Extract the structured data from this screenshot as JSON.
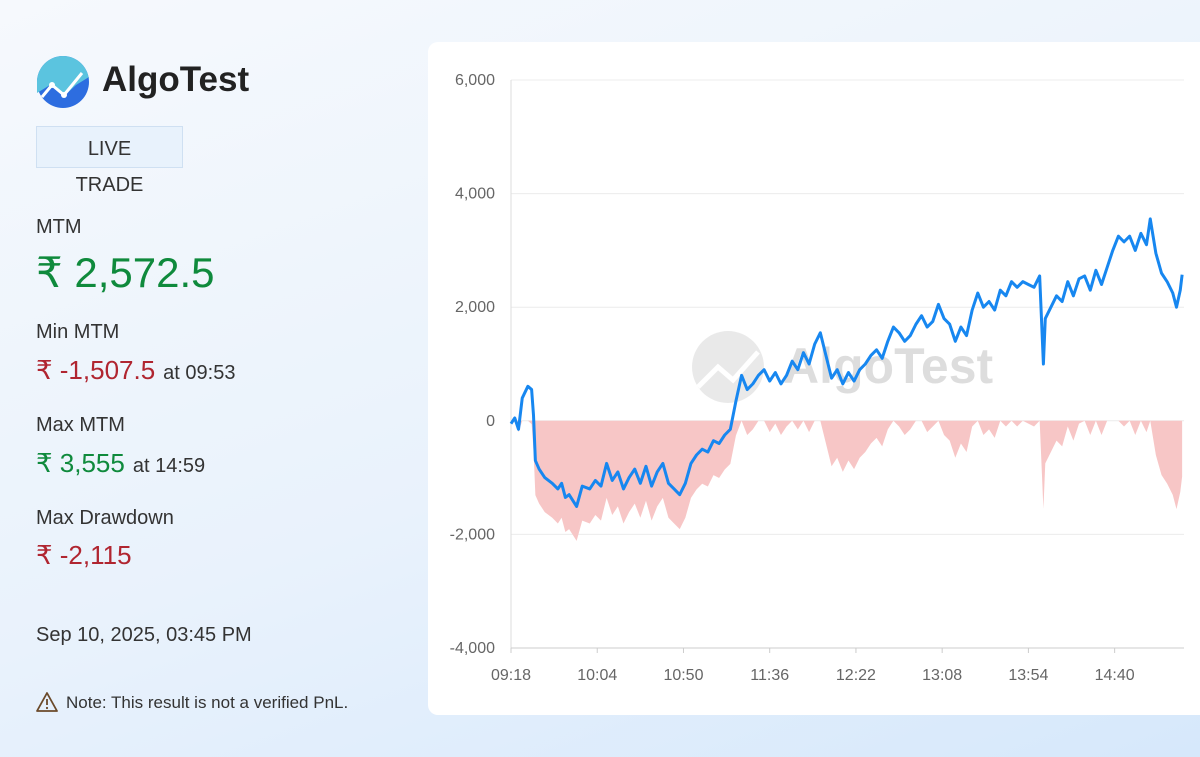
{
  "brand": "AlgoTest",
  "badge": {
    "top": "LIVE",
    "bottom": "TRADE"
  },
  "stats": {
    "mtm": {
      "label": "MTM",
      "value": "₹ 2,572.5"
    },
    "min_mtm": {
      "label": "Min MTM",
      "value": "₹ -1,507.5",
      "time": "at 09:53"
    },
    "max_mtm": {
      "label": "Max MTM",
      "value": "₹ 3,555",
      "time": "at 14:59"
    },
    "max_drawdown": {
      "label": "Max Drawdown",
      "value": "₹ -2,115"
    }
  },
  "timestamp": "Sep 10, 2025, 03:45 PM",
  "note": "Note: This result is not a verified PnL.",
  "chart_data": {
    "type": "line",
    "watermark": "AlgoTest",
    "x": [
      "09:18",
      "09:20",
      "09:22",
      "09:24",
      "09:27",
      "09:29",
      "09:30",
      "09:31",
      "09:33",
      "09:36",
      "09:40",
      "09:43",
      "09:45",
      "09:47",
      "09:49",
      "09:53",
      "09:56",
      "10:00",
      "10:03",
      "10:06",
      "10:09",
      "10:12",
      "10:15",
      "10:18",
      "10:21",
      "10:24",
      "10:27",
      "10:30",
      "10:33",
      "10:36",
      "10:39",
      "10:42",
      "10:45",
      "10:48",
      "10:51",
      "10:54",
      "10:57",
      "11:00",
      "11:03",
      "11:06",
      "11:09",
      "11:12",
      "11:15",
      "11:18",
      "11:21",
      "11:24",
      "11:27",
      "11:30",
      "11:33",
      "11:36",
      "11:39",
      "11:42",
      "11:45",
      "11:48",
      "11:51",
      "11:54",
      "11:57",
      "12:00",
      "12:03",
      "12:06",
      "12:09",
      "12:12",
      "12:15",
      "12:18",
      "12:21",
      "12:24",
      "12:27",
      "12:30",
      "12:33",
      "12:36",
      "12:39",
      "12:42",
      "12:45",
      "12:48",
      "12:51",
      "12:54",
      "12:57",
      "13:00",
      "13:03",
      "13:06",
      "13:09",
      "13:12",
      "13:15",
      "13:18",
      "13:21",
      "13:24",
      "13:27",
      "13:30",
      "13:33",
      "13:36",
      "13:39",
      "13:42",
      "13:45",
      "13:48",
      "13:51",
      "13:54",
      "13:57",
      "14:00",
      "14:02",
      "14:03",
      "14:06",
      "14:09",
      "14:12",
      "14:15",
      "14:18",
      "14:21",
      "14:24",
      "14:27",
      "14:30",
      "14:33",
      "14:36",
      "14:39",
      "14:42",
      "14:45",
      "14:48",
      "14:51",
      "14:54",
      "14:57",
      "14:59",
      "15:02",
      "15:05",
      "15:08",
      "15:11",
      "15:13",
      "15:15",
      "15:16"
    ],
    "series": [
      {
        "kind": "line",
        "color": "#1787f0",
        "values": [
          -50,
          50,
          -150,
          400,
          607.5,
          550,
          100,
          -700,
          -850,
          -1000,
          -1100,
          -1200,
          -1100,
          -1350,
          -1300,
          -1507.5,
          -1150,
          -1200,
          -1050,
          -1150,
          -750,
          -1050,
          -900,
          -1200,
          -1000,
          -850,
          -1100,
          -800,
          -1150,
          -900,
          -750,
          -1100,
          -1200,
          -1300,
          -1100,
          -750,
          -600,
          -500,
          -550,
          -350,
          -400,
          -250,
          -150,
          350,
          800,
          550,
          650,
          800,
          900,
          700,
          850,
          650,
          800,
          1050,
          900,
          1200,
          1000,
          1350,
          1550,
          1150,
          750,
          900,
          650,
          850,
          700,
          900,
          1000,
          1150,
          1250,
          1100,
          1400,
          1650,
          1550,
          1400,
          1500,
          1700,
          1850,
          1650,
          1750,
          2050,
          1800,
          1700,
          1400,
          1650,
          1500,
          1950,
          2250,
          2000,
          2100,
          1950,
          2300,
          2200,
          2450,
          2350,
          2450,
          2400,
          2350,
          2550,
          1000,
          1800,
          2000,
          2200,
          2100,
          2450,
          2200,
          2500,
          2550,
          2300,
          2650,
          2400,
          2700,
          3000,
          3250,
          3150,
          3250,
          3000,
          3300,
          3100,
          3555,
          2950,
          2600,
          2450,
          2250,
          2000,
          2300,
          2572.5
        ]
      },
      {
        "kind": "area",
        "color": "#f7c6c6",
        "values": [
          0,
          0,
          -200,
          0,
          0,
          -57.5,
          -507.5,
          -1307.5,
          -1457.5,
          -1607.5,
          -1707.5,
          -1807.5,
          -1707.5,
          -1957.5,
          -1907.5,
          -2115,
          -1757.5,
          -1807.5,
          -1657.5,
          -1757.5,
          -1357.5,
          -1657.5,
          -1507.5,
          -1807.5,
          -1607.5,
          -1457.5,
          -1707.5,
          -1407.5,
          -1757.5,
          -1507.5,
          -1357.5,
          -1707.5,
          -1807.5,
          -1907.5,
          -1707.5,
          -1357.5,
          -1207.5,
          -1107.5,
          -1157.5,
          -957.5,
          -1007.5,
          -857.5,
          -757.5,
          -257.5,
          0,
          -250,
          -150,
          0,
          0,
          -200,
          -50,
          -250,
          -100,
          0,
          -150,
          0,
          -200,
          0,
          0,
          -400,
          -800,
          -650,
          -900,
          -700,
          -850,
          -650,
          -550,
          -400,
          -300,
          -450,
          -150,
          0,
          -100,
          -250,
          -150,
          0,
          0,
          -200,
          -100,
          0,
          -250,
          -350,
          -650,
          -400,
          -550,
          -100,
          0,
          -250,
          -150,
          -300,
          0,
          -100,
          0,
          -100,
          0,
          -50,
          -100,
          0,
          -1550,
          -750,
          -550,
          -350,
          -450,
          -100,
          -350,
          -50,
          0,
          -250,
          0,
          -250,
          0,
          0,
          0,
          -100,
          0,
          -250,
          0,
          -200,
          0,
          -605,
          -955,
          -1105,
          -1305,
          -1555,
          -1255,
          -982.5
        ]
      }
    ],
    "xlim": [
      "09:18",
      "15:17"
    ],
    "xticks": [
      "09:18",
      "10:04",
      "10:50",
      "11:36",
      "12:22",
      "13:08",
      "13:54",
      "14:40"
    ],
    "ylim": [
      -4000,
      6000
    ],
    "yticks": [
      {
        "value": -4000,
        "label": "-4,000"
      },
      {
        "value": -2000,
        "label": "-2,000"
      },
      0,
      {
        "value": 2000,
        "label": "2,000"
      },
      {
        "value": 4000,
        "label": "4,000"
      },
      {
        "value": 6000,
        "label": "6,000"
      }
    ],
    "grid": true
  }
}
